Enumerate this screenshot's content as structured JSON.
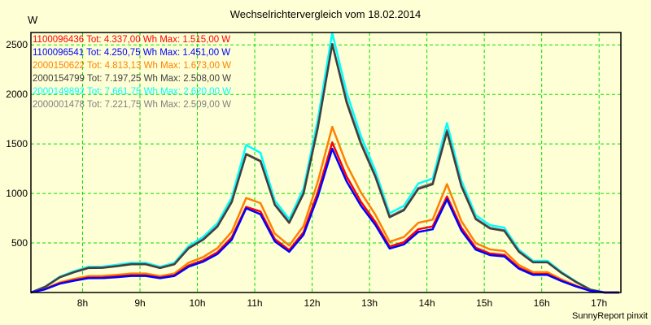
{
  "chart_data": {
    "type": "line",
    "title": "Wechselrichtervergleich vom 18.02.2014",
    "ylabel": "W",
    "xlabel": "",
    "ylim": [
      0,
      2625
    ],
    "xlim": [
      7.1,
      17.38
    ],
    "yticks": [
      500,
      1000,
      1500,
      2000,
      2500
    ],
    "xticks": [
      {
        "v": 8,
        "label": "8h"
      },
      {
        "v": 9,
        "label": "9h"
      },
      {
        "v": 10,
        "label": "10h"
      },
      {
        "v": 11,
        "label": "11h"
      },
      {
        "v": 12,
        "label": "12h"
      },
      {
        "v": 13,
        "label": "13h"
      },
      {
        "v": 14,
        "label": "14h"
      },
      {
        "v": 15,
        "label": "15h"
      },
      {
        "v": 16,
        "label": "16h"
      },
      {
        "v": 17,
        "label": "17h"
      }
    ],
    "grid": true,
    "legend_position": "top-left",
    "x": [
      7.1,
      7.35,
      7.6,
      7.85,
      8.1,
      8.35,
      8.6,
      8.85,
      9.1,
      9.35,
      9.6,
      9.85,
      10.1,
      10.35,
      10.6,
      10.85,
      11.1,
      11.35,
      11.6,
      11.85,
      12.1,
      12.35,
      12.6,
      12.85,
      13.1,
      13.35,
      13.6,
      13.85,
      14.1,
      14.35,
      14.6,
      14.85,
      15.1,
      15.35,
      15.6,
      15.85,
      16.1,
      16.35,
      16.6,
      16.85,
      17.1,
      17.35
    ],
    "series": [
      {
        "name": "1100096436",
        "legend": "1100096436 Tot: 4.337,00 Wh Max: 1.515,00 W",
        "color": "#FF0000",
        "values": [
          0,
          35,
          93,
          125,
          151,
          152,
          162,
          174,
          174,
          151,
          174,
          273,
          325,
          406,
          557,
          864,
          818,
          539,
          429,
          609,
          1015,
          1515,
          1172,
          916,
          713,
          464,
          508,
          638,
          667,
          970,
          655,
          452,
          394,
          380,
          252,
          186,
          186,
          119,
          64,
          17,
          0,
          0
        ]
      },
      {
        "name": "1100096541",
        "legend": "1100096541 Tot: 4.250,75 Wh Max: 1.451,00 W",
        "color": "#0000FF",
        "values": [
          0,
          33,
          89,
          119,
          144,
          145,
          155,
          167,
          167,
          144,
          167,
          261,
          311,
          389,
          533,
          850,
          790,
          516,
          411,
          583,
          970,
          1451,
          1121,
          877,
          683,
          444,
          486,
          611,
          638,
          940,
          627,
          433,
          377,
          364,
          241,
          178,
          178,
          114,
          61,
          17,
          0,
          0
        ]
      },
      {
        "name": "2000150622",
        "legend": "2000150622 Tot: 4.813,13 Wh Max: 1.673,00 W",
        "color": "#FF8000",
        "values": [
          0,
          38,
          102,
          138,
          166,
          168,
          179,
          192,
          192,
          166,
          192,
          301,
          358,
          448,
          614,
          954,
          902,
          595,
          474,
          672,
          1120,
          1673,
          1293,
          1011,
          787,
          512,
          560,
          704,
          736,
          1094,
          723,
          499,
          435,
          419,
          278,
          205,
          205,
          131,
          70,
          19,
          0,
          0
        ]
      },
      {
        "name": "2000154799",
        "legend": "2000154799 Tot: 7.197,25 Wh Max: 2.508,00 W",
        "color": "#404040",
        "values": [
          0,
          57,
          152,
          204,
          247,
          249,
          266,
          285,
          285,
          247,
          285,
          446,
          532,
          665,
          912,
          1395,
          1325,
          884,
          703,
          998,
          1663,
          2508,
          1919,
          1501,
          1169,
          760,
          831,
          1045,
          1093,
          1624,
          1074,
          741,
          646,
          622,
          413,
          304,
          304,
          195,
          105,
          28,
          0,
          0
        ]
      },
      {
        "name": "2000149892",
        "legend": "2000149892 Tot: 7.661,75 Wh Max: 2.620,00 W",
        "color": "#00FFFF",
        "values": [
          0,
          60,
          160,
          215,
          260,
          262,
          280,
          300,
          300,
          260,
          300,
          470,
          560,
          700,
          960,
          1490,
          1410,
          930,
          740,
          1050,
          1750,
          2620,
          2020,
          1580,
          1230,
          800,
          875,
          1100,
          1150,
          1710,
          1130,
          780,
          680,
          655,
          435,
          320,
          320,
          205,
          110,
          30,
          0,
          0
        ]
      },
      {
        "name": "2000001478",
        "legend": "2000001478 Tot: 7.221,75 Wh Max: 2.509,00 W",
        "color": "#808080",
        "values": [
          0,
          58,
          154,
          206,
          250,
          252,
          269,
          288,
          288,
          250,
          288,
          451,
          538,
          672,
          922,
          1400,
          1330,
          893,
          710,
          1008,
          1680,
          2509,
          1939,
          1517,
          1181,
          768,
          840,
          1056,
          1104,
          1640,
          1085,
          749,
          653,
          629,
          418,
          307,
          307,
          197,
          106,
          29,
          0,
          0
        ]
      }
    ]
  },
  "credit": "SunnyReport pinxit",
  "colors": {
    "background": "#FFFFD5",
    "grid": "#00E000"
  }
}
